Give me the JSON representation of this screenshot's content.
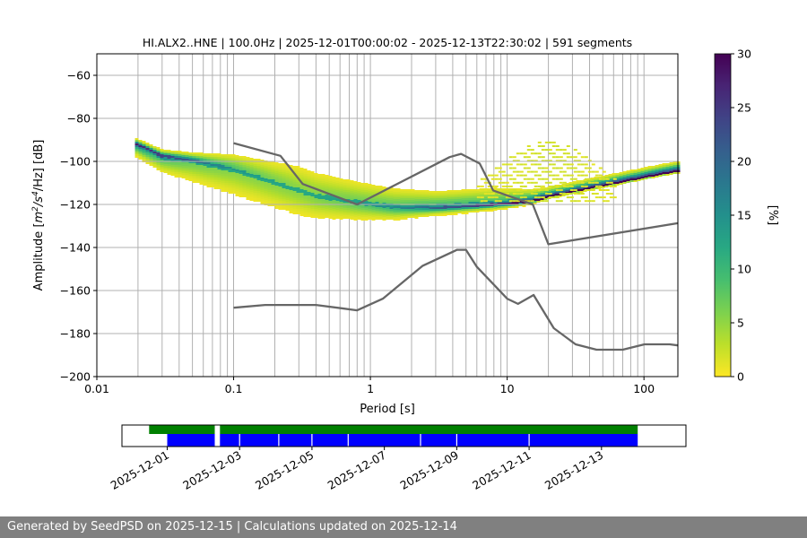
{
  "footer": {
    "text": "Generated by SeedPSD on 2025-12-15 | Calculations updated on 2025-12-14"
  },
  "colors": {
    "nlnm_nhnm": "#666666",
    "availability_green": "#008000",
    "availability_blue": "#0000ff",
    "grid": "#b0b0b0"
  },
  "chart_data": [
    {
      "type": "heatmap",
      "title": "HI.ALX2..HNE | 100.0Hz | 2025-12-01T00:00:02 - 2025-12-13T22:30:02 | 591 segments",
      "xlabel": "Period [s]",
      "ylabel_parts": [
        "Amplitude [",
        "m",
        "2",
        "/s",
        "4",
        "/Hz] [dB]"
      ],
      "x_scale": "log",
      "xlim": [
        0.01,
        177
      ],
      "ylim": [
        -200,
        -50
      ],
      "x_ticks": [
        {
          "v": 0.01,
          "label": "0.01"
        },
        {
          "v": 0.1,
          "label": "0.1"
        },
        {
          "v": 1,
          "label": "1"
        },
        {
          "v": 10,
          "label": "10"
        },
        {
          "v": 100,
          "label": "100"
        }
      ],
      "y_ticks": [
        {
          "v": -60,
          "label": "−60"
        },
        {
          "v": -80,
          "label": "−80"
        },
        {
          "v": -100,
          "label": "−100"
        },
        {
          "v": -120,
          "label": "−120"
        },
        {
          "v": -140,
          "label": "−140"
        },
        {
          "v": -160,
          "label": "−160"
        },
        {
          "v": -180,
          "label": "−180"
        },
        {
          "v": -200,
          "label": "−200"
        }
      ],
      "colorbar": {
        "label": "[%]",
        "range": [
          0,
          30
        ],
        "ticks": [
          {
            "v": 0,
            "label": "0"
          },
          {
            "v": 5,
            "label": "5"
          },
          {
            "v": 10,
            "label": "10"
          },
          {
            "v": 15,
            "label": "15"
          },
          {
            "v": 20,
            "label": "20"
          },
          {
            "v": 25,
            "label": "25"
          },
          {
            "v": 30,
            "label": "30"
          }
        ],
        "colormap": "viridis_r"
      },
      "psd_density": {
        "period_range": [
          0.019,
          177
        ],
        "mode_curve": [
          [
            0.019,
            -92
          ],
          [
            0.03,
            -98
          ],
          [
            0.05,
            -100
          ],
          [
            0.1,
            -104
          ],
          [
            0.2,
            -110
          ],
          [
            0.4,
            -116
          ],
          [
            0.8,
            -119
          ],
          [
            1.5,
            -121
          ],
          [
            3,
            -121
          ],
          [
            6,
            -120
          ],
          [
            10,
            -119
          ],
          [
            15,
            -118
          ],
          [
            20,
            -116
          ],
          [
            40,
            -112
          ],
          [
            70,
            -109
          ],
          [
            120,
            -106
          ],
          [
            177,
            -104
          ]
        ],
        "spread_below_db": [
          [
            0.019,
            4
          ],
          [
            0.05,
            8
          ],
          [
            0.1,
            10
          ],
          [
            0.3,
            10
          ],
          [
            1,
            6
          ],
          [
            3,
            3
          ],
          [
            10,
            2
          ],
          [
            20,
            1
          ],
          [
            177,
            1
          ]
        ],
        "spread_above_db": [
          [
            0.019,
            2
          ],
          [
            0.05,
            3
          ],
          [
            0.1,
            6
          ],
          [
            0.3,
            10
          ],
          [
            1,
            8
          ],
          [
            3,
            6
          ],
          [
            8,
            6
          ],
          [
            20,
            3
          ],
          [
            177,
            3
          ]
        ],
        "secondary_band": {
          "period_range": [
            6,
            60
          ],
          "center_period": 20,
          "peak_db": -90,
          "base_db": -118,
          "width_decades": 0.35
        }
      },
      "nhnm": [
        [
          0.1,
          -91.5
        ],
        [
          0.22,
          -97.4
        ],
        [
          0.32,
          -110.5
        ],
        [
          0.8,
          -120
        ],
        [
          3.8,
          -98
        ],
        [
          4.6,
          -96.5
        ],
        [
          6.3,
          -101
        ],
        [
          7.9,
          -113.5
        ],
        [
          15.4,
          -120
        ],
        [
          20,
          -138.5
        ],
        [
          177,
          -128.7
        ]
      ],
      "nlnm": [
        [
          0.1,
          -168
        ],
        [
          0.17,
          -166.7
        ],
        [
          0.4,
          -166.7
        ],
        [
          0.8,
          -169.2
        ],
        [
          1.24,
          -163.7
        ],
        [
          2.4,
          -148.6
        ],
        [
          4.3,
          -141.1
        ],
        [
          5,
          -141.1
        ],
        [
          6,
          -149
        ],
        [
          10,
          -163.8
        ],
        [
          12,
          -166.2
        ],
        [
          15.6,
          -162.1
        ],
        [
          21.9,
          -177.5
        ],
        [
          31.6,
          -185
        ],
        [
          45,
          -187.5
        ],
        [
          70,
          -187.5
        ],
        [
          101,
          -185
        ],
        [
          154,
          -185
        ],
        [
          177,
          -185.5
        ]
      ],
      "vertical_gridlines_period": [
        0.02,
        0.03,
        0.04,
        0.05,
        0.06,
        0.07,
        0.08,
        0.09,
        0.1,
        0.2,
        0.3,
        0.4,
        0.5,
        0.6,
        0.7,
        0.8,
        0.9,
        1,
        2,
        3,
        4,
        5,
        6,
        7,
        8,
        9,
        10,
        20,
        30,
        40,
        50,
        60,
        70,
        80,
        90,
        100
      ]
    },
    {
      "type": "timeline",
      "x_ticks": [
        {
          "v": "2025-12-01",
          "label": "2025-12-01"
        },
        {
          "v": "2025-12-03",
          "label": "2025-12-03"
        },
        {
          "v": "2025-12-05",
          "label": "2025-12-05"
        },
        {
          "v": "2025-12-07",
          "label": "2025-12-07"
        },
        {
          "v": "2025-12-09",
          "label": "2025-12-09"
        },
        {
          "v": "2025-12-11",
          "label": "2025-12-11"
        },
        {
          "v": "2025-12-13",
          "label": "2025-12-13"
        }
      ],
      "xlim": [
        "2025-11-29T18:00",
        "2025-12-15T08:00"
      ],
      "green_segments": [
        [
          "2025-11-30T12:00",
          "2025-12-02T07:30"
        ],
        [
          "2025-12-02T11:00",
          "2025-12-14T00:00"
        ]
      ],
      "blue_segments": [
        [
          "2025-12-01T00:00",
          "2025-12-02T07:30"
        ],
        [
          "2025-12-02T11:00",
          "2025-12-14T00:00"
        ]
      ],
      "blue_gaps": [
        "2025-12-03T00:00",
        "2025-12-04T02:00",
        "2025-12-05T00:00",
        "2025-12-06T00:00",
        "2025-12-08T00:00",
        "2025-12-09T00:00",
        "2025-12-11T00:00"
      ]
    }
  ]
}
